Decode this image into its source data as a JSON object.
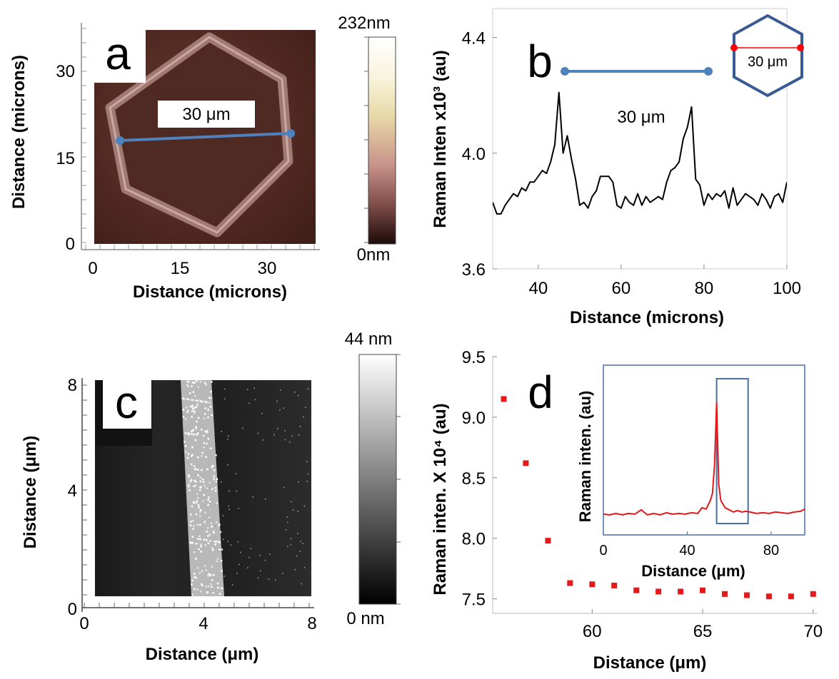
{
  "figure": {
    "panel_a": {
      "label": "a",
      "xlabel": "Distance (microns)",
      "ylabel": "Distance (microns)",
      "xticks": [
        "0",
        "15",
        "30"
      ],
      "yticks": [
        "0",
        "15",
        "30"
      ],
      "scale_bar_label": "30 μm",
      "colorbar": {
        "max_label": "232nm",
        "min_label": "0nm"
      }
    },
    "panel_b": {
      "label": "b",
      "scale_bar_label": "30 μm",
      "inset_label": "30 μm"
    },
    "panel_c": {
      "label": "c",
      "xlabel": "Distance (μm)",
      "ylabel": "Distance (μm)",
      "xticks": [
        "0",
        "4",
        "8"
      ],
      "yticks": [
        "0",
        "4",
        "8"
      ],
      "colorbar": {
        "max_label": "44 nm",
        "min_label": "0 nm"
      }
    },
    "panel_d": {
      "label": "d"
    }
  },
  "chart_data": [
    {
      "panel": "b",
      "type": "line",
      "xlabel": "Distance (microns)",
      "ylabel": "Raman  Inten x10³ (au)",
      "xlim": [
        29,
        100
      ],
      "ylim": [
        3.6,
        4.5
      ],
      "xticks": [
        40,
        60,
        80,
        100
      ],
      "yticks": [
        3.6,
        4.0,
        4.4
      ],
      "ytick_labels": [
        "3.6",
        "4.0",
        "4.4"
      ],
      "series": [
        {
          "color": "#000000",
          "x": [
            29,
            30,
            31,
            32,
            33,
            34,
            35,
            36,
            37,
            38,
            39,
            40,
            41,
            42,
            43,
            44,
            45,
            46,
            47,
            48,
            49,
            50,
            51,
            52,
            53,
            54,
            55,
            56,
            57,
            58,
            59,
            60,
            61,
            62,
            63,
            64,
            65,
            66,
            67,
            68,
            69,
            70,
            71,
            72,
            73,
            74,
            75,
            76,
            77,
            78,
            79,
            80,
            81,
            82,
            83,
            84,
            85,
            86,
            87,
            88,
            89,
            90,
            91,
            92,
            93,
            94,
            95,
            96,
            97,
            98,
            99,
            100
          ],
          "y": [
            3.83,
            3.79,
            3.79,
            3.82,
            3.84,
            3.86,
            3.85,
            3.88,
            3.87,
            3.9,
            3.9,
            3.92,
            3.94,
            3.93,
            3.97,
            4.03,
            4.21,
            4.0,
            4.06,
            3.98,
            3.91,
            3.82,
            3.83,
            3.81,
            3.85,
            3.87,
            3.92,
            3.92,
            3.92,
            3.9,
            3.82,
            3.81,
            3.85,
            3.83,
            3.82,
            3.86,
            3.82,
            3.85,
            3.83,
            3.84,
            3.85,
            3.84,
            3.9,
            3.94,
            3.95,
            3.97,
            4.05,
            4.09,
            4.16,
            3.91,
            3.89,
            3.82,
            3.86,
            3.84,
            3.86,
            3.85,
            3.87,
            3.81,
            3.88,
            3.82,
            3.84,
            3.86,
            3.85,
            3.84,
            3.82,
            3.86,
            3.84,
            3.81,
            3.85,
            3.86,
            3.83,
            3.9
          ]
        }
      ]
    },
    {
      "panel": "d",
      "type": "scatter",
      "xlabel": "Distance (μm)",
      "ylabel": "Raman inten. X 10⁴ (au)",
      "xlim": [
        55.5,
        70.2
      ],
      "ylim": [
        7.38,
        9.5
      ],
      "xticks": [
        60,
        65,
        70
      ],
      "yticks": [
        7.5,
        8.0,
        8.5,
        9.0,
        9.5
      ],
      "ytick_labels": [
        "7.5",
        "8.0",
        "8.5",
        "9.0",
        "9.5"
      ],
      "series": [
        {
          "color": "#e31a1c",
          "x": [
            56,
            57,
            58,
            59,
            60,
            61,
            62,
            63,
            64,
            65,
            66,
            67,
            68,
            69,
            70
          ],
          "y": [
            9.15,
            8.62,
            7.98,
            7.63,
            7.62,
            7.61,
            7.57,
            7.56,
            7.56,
            7.57,
            7.54,
            7.53,
            7.52,
            7.52,
            7.54
          ]
        }
      ],
      "inset": {
        "type": "line",
        "xlabel": "Distance (μm)",
        "ylabel": "Raman inten. (au)",
        "xlim": [
          0,
          96
        ],
        "ylim": [
          0,
          1
        ],
        "xticks": [
          0,
          40,
          80
        ],
        "highlight_x_range": [
          54,
          69
        ],
        "series": [
          {
            "color": "#e31a1c",
            "x": [
              0,
              3,
              6,
              9,
              12,
              15,
              18,
              21,
              24,
              27,
              30,
              33,
              36,
              39,
              42,
              45,
              47,
              49,
              51,
              52,
              53,
              54,
              55,
              56,
              58,
              60,
              62,
              64,
              66,
              68,
              70,
              73,
              76,
              79,
              82,
              85,
              88,
              91,
              94,
              96
            ],
            "y": [
              0.055,
              0.05,
              0.06,
              0.05,
              0.06,
              0.055,
              0.085,
              0.05,
              0.06,
              0.05,
              0.065,
              0.055,
              0.06,
              0.055,
              0.065,
              0.06,
              0.1,
              0.09,
              0.15,
              0.2,
              0.4,
              0.83,
              0.26,
              0.15,
              0.1,
              0.085,
              0.07,
              0.08,
              0.07,
              0.075,
              0.07,
              0.06,
              0.065,
              0.06,
              0.07,
              0.065,
              0.06,
              0.07,
              0.075,
              0.09
            ]
          }
        ]
      }
    }
  ]
}
